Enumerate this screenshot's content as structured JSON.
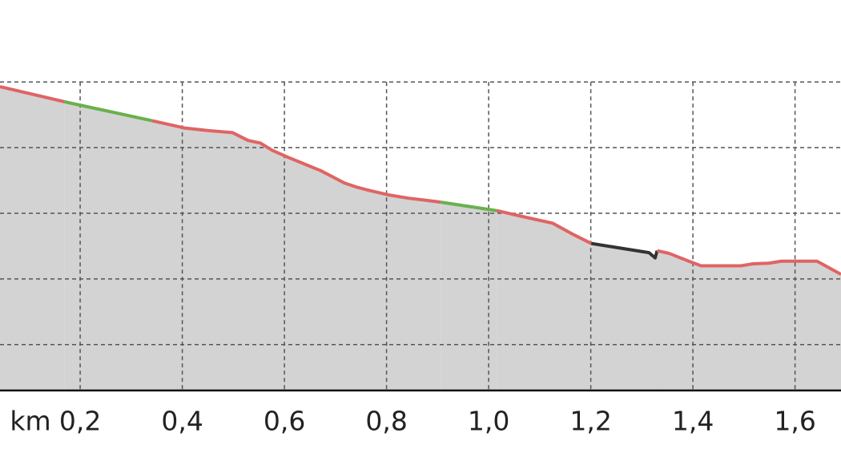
{
  "chart_data": {
    "type": "line",
    "x_label": "km",
    "xlim": [
      0.043,
      1.69
    ],
    "xticks": [
      {
        "value": 0.2,
        "label": "0,2"
      },
      {
        "value": 0.4,
        "label": "0,4"
      },
      {
        "value": 0.6,
        "label": "0,6"
      },
      {
        "value": 0.8,
        "label": "0,8"
      },
      {
        "value": 1.0,
        "label": "1,0"
      },
      {
        "value": 1.2,
        "label": "1,2"
      },
      {
        "value": 1.4,
        "label": "1,4"
      },
      {
        "value": 1.6,
        "label": "1,6"
      }
    ],
    "ylim": [
      0.3,
      6.25
    ],
    "yticks": [
      1,
      2,
      3,
      4,
      5
    ],
    "grid": true,
    "fill_color": "#d3d3d3",
    "series": [
      {
        "color": "#e06464",
        "x": [
          0.043,
          0.169
        ],
        "values": [
          4.93,
          4.7
        ]
      },
      {
        "color": "#6ab04c",
        "x": [
          0.169,
          0.341
        ],
        "values": [
          4.7,
          4.41
        ]
      },
      {
        "color": "#e06464",
        "x": [
          0.341,
          0.404,
          0.451,
          0.498,
          0.529,
          0.553,
          0.576,
          0.608,
          0.671,
          0.718,
          0.741,
          0.765,
          0.804,
          0.843,
          0.875,
          0.906
        ],
        "values": [
          4.41,
          4.3,
          4.26,
          4.23,
          4.11,
          4.07,
          3.96,
          3.85,
          3.65,
          3.46,
          3.4,
          3.35,
          3.28,
          3.23,
          3.2,
          3.17
        ]
      },
      {
        "color": "#6ab04c",
        "x": [
          0.906,
          1.016
        ],
        "values": [
          3.17,
          3.04
        ]
      },
      {
        "color": "#e06464",
        "x": [
          1.016,
          1.078,
          1.125,
          1.165,
          1.201
        ],
        "values": [
          3.04,
          2.93,
          2.85,
          2.68,
          2.54
        ]
      },
      {
        "color": "#333333",
        "x": [
          1.201,
          1.314,
          1.326,
          1.33
        ],
        "values": [
          2.54,
          2.4,
          2.32,
          2.43
        ]
      },
      {
        "color": "#e06464",
        "x": [
          1.33,
          1.353,
          1.392,
          1.416,
          1.494,
          1.518,
          1.549,
          1.573,
          1.643,
          1.69
        ],
        "values": [
          2.43,
          2.39,
          2.27,
          2.2,
          2.2,
          2.23,
          2.24,
          2.27,
          2.27,
          2.07
        ]
      }
    ]
  }
}
